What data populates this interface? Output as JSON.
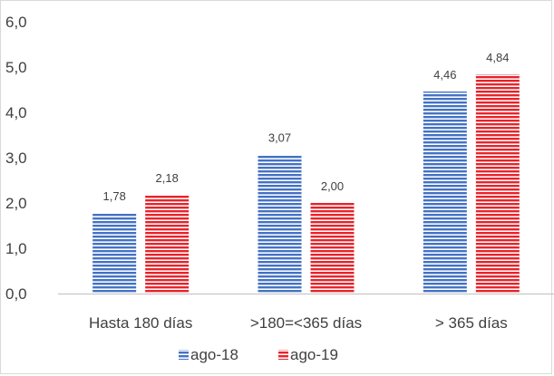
{
  "chart_data": {
    "type": "bar",
    "categories": [
      "Hasta 180 días",
      ">180=<365 días",
      "> 365 días"
    ],
    "series": [
      {
        "name": "ago-18",
        "values": [
          1.78,
          3.07,
          4.46
        ],
        "labels": [
          "1,78",
          "3,07",
          "4,46"
        ],
        "color": "#4472c4"
      },
      {
        "name": "ago-19",
        "values": [
          2.18,
          2.0,
          4.84
        ],
        "labels": [
          "2,18",
          "2,00",
          "4,84"
        ],
        "color": "#e8232a"
      }
    ],
    "ylim": [
      0,
      6
    ],
    "yticks": [
      0,
      1,
      2,
      3,
      4,
      5,
      6
    ],
    "ytick_labels": [
      "0,0",
      "1,0",
      "2,0",
      "3,0",
      "4,0",
      "5,0",
      "6,0"
    ],
    "grid": false,
    "legend_position": "bottom"
  }
}
